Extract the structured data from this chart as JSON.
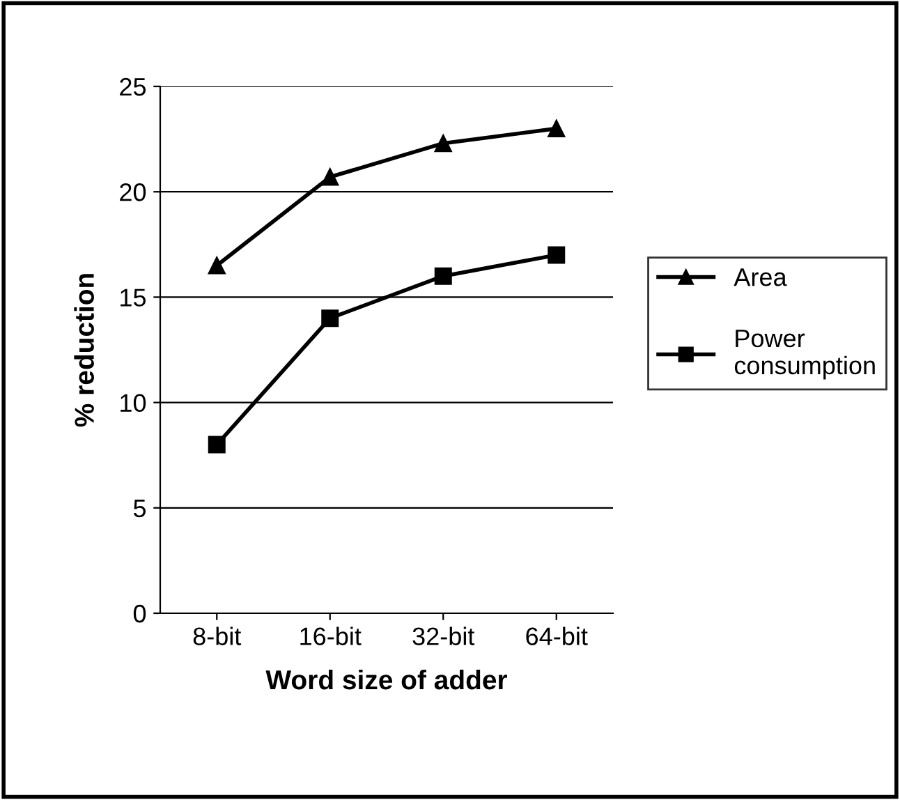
{
  "chart_data": {
    "type": "line",
    "xlabel": "Word size of adder",
    "ylabel": "% reduction",
    "categories": [
      "8-bit",
      "16-bit",
      "32-bit",
      "64-bit"
    ],
    "series": [
      {
        "name": "Area",
        "color": "#000000",
        "values": [
          16.5,
          20.7,
          22.3,
          23
        ],
        "marker": "triangle"
      },
      {
        "name": "Power\nconsumption",
        "color": "#000000",
        "values": [
          8,
          14,
          16,
          17
        ],
        "marker": "square"
      }
    ],
    "ylim": [
      0,
      25
    ],
    "yticks": [
      0,
      5,
      10,
      15,
      20,
      25
    ],
    "grid": "y",
    "legend": "right",
    "line_style": "solid"
  }
}
